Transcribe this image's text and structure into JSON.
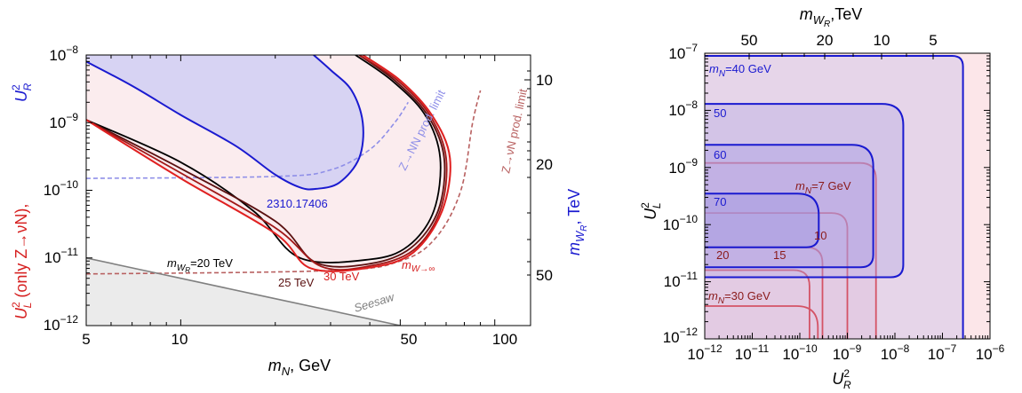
{
  "chart_data": [
    {
      "type": "line",
      "xlabel_main": "m",
      "xlabel_sub": "N",
      "xlabel_unit": ", GeV",
      "ylabel_left_red": "U",
      "ylabel_left_red_sup": "2",
      "ylabel_left_red_sub": "L",
      "ylabel_left_red_tail": " (only Z→νN),",
      "ylabel_left_blue": "U",
      "ylabel_left_blue_sup": "2",
      "ylabel_left_blue_sub": "R",
      "ylabel_right": "m",
      "ylabel_right_sub": "W",
      "ylabel_right_subsub": "R",
      "ylabel_right_unit": ", TeV",
      "xscale": "log",
      "yscale": "log",
      "xlim": [
        5,
        130
      ],
      "ylim": [
        1e-12,
        1e-08
      ],
      "xticks": [
        "5",
        "10",
        "50",
        "100"
      ],
      "yticks": [
        {
          "base": "10",
          "exp": "−8"
        },
        {
          "base": "10",
          "exp": "−9"
        },
        {
          "base": "10",
          "exp": "−10"
        },
        {
          "base": "10",
          "exp": "−11"
        },
        {
          "base": "10",
          "exp": "−12"
        }
      ],
      "right_ticks": [
        "10",
        "20",
        "50"
      ],
      "colors": {
        "red": "#d62020",
        "blue": "#2020cc",
        "black": "#000000",
        "gray": "#808080",
        "blue_fill": "#d7d3f3",
        "red_fill": "#fbecee"
      },
      "series": [
        {
          "name": "2310.17406",
          "values": [
            [
              5,
              8e-09
            ],
            [
              7,
              3.5e-09
            ],
            [
              10,
              1.3e-09
            ],
            [
              15,
              4.5e-10
            ],
            [
              20,
              1.7e-10
            ],
            [
              24,
              1.1e-10
            ],
            [
              27,
              1.05e-10
            ],
            [
              32,
              1.3e-10
            ],
            [
              37,
              3e-10
            ],
            [
              38,
              1e-09
            ],
            [
              35,
              3e-09
            ],
            [
              30,
              6e-09
            ],
            [
              26.5,
              1e-08
            ]
          ]
        },
        {
          "name": "Z→NN prod. limit",
          "values": [
            [
              5,
              1.5e-10
            ],
            [
              20,
              1.6e-10
            ],
            [
              30,
              2e-10
            ],
            [
              40,
              4e-10
            ],
            [
              48,
              1e-09
            ],
            [
              53,
              2e-09
            ]
          ]
        },
        {
          "name": "Z→νN prod. limit",
          "values": [
            [
              5,
              5.8e-12
            ],
            [
              30,
              6.5e-12
            ],
            [
              50,
              9e-12
            ],
            [
              65,
              2e-11
            ],
            [
              78,
              1e-10
            ],
            [
              85,
              1e-09
            ],
            [
              90,
              3e-09
            ]
          ]
        },
        {
          "name": "Seesaw",
          "values": [
            [
              5,
              1e-11
            ],
            [
              10,
              5e-12
            ],
            [
              20,
              2.5e-12
            ],
            [
              50,
              1e-12
            ]
          ]
        },
        {
          "name": "m_W→∞",
          "values": [
            [
              5,
              1.1e-09
            ],
            [
              10,
              1.5e-10
            ],
            [
              20,
              2.3e-11
            ],
            [
              26,
              7e-12
            ],
            [
              40,
              7.2e-12
            ],
            [
              55,
              1.2e-11
            ],
            [
              68,
              5e-11
            ],
            [
              72,
              3e-10
            ],
            [
              63,
              1.3e-09
            ],
            [
              50,
              4.2e-09
            ],
            [
              38,
              1e-08
            ]
          ]
        },
        {
          "name": "30 TeV",
          "values": [
            [
              5,
              1.1e-09
            ],
            [
              10,
              1.8e-10
            ],
            [
              20,
              2.8e-11
            ],
            [
              28,
              7.5e-12
            ],
            [
              40,
              7.6e-12
            ],
            [
              55,
              1.3e-11
            ],
            [
              67,
              5e-11
            ],
            [
              70,
              3e-10
            ],
            [
              62,
              1.3e-09
            ],
            [
              49,
              4.2e-09
            ],
            [
              37,
              1e-08
            ]
          ]
        },
        {
          "name": "25 TeV",
          "values": [
            [
              5,
              1.1e-09
            ],
            [
              10,
              2.1e-10
            ],
            [
              20,
              3.5e-11
            ],
            [
              27,
              8.5e-12
            ],
            [
              40,
              8.2e-12
            ],
            [
              54,
              1.4e-11
            ],
            [
              66,
              5e-11
            ],
            [
              69,
              3e-10
            ],
            [
              61,
              1.3e-09
            ],
            [
              48,
              4.2e-09
            ],
            [
              37,
              1e-08
            ]
          ]
        },
        {
          "name": "m_W_R=20 TeV",
          "values": [
            [
              5,
              1.1e-09
            ],
            [
              10,
              2.6e-10
            ],
            [
              17,
              5e-11
            ],
            [
              24,
              1e-11
            ],
            [
              40,
              9.5e-12
            ],
            [
              53,
              1.5e-11
            ],
            [
              64,
              5e-11
            ],
            [
              67,
              3e-10
            ],
            [
              60,
              1.3e-09
            ],
            [
              47,
              4.2e-09
            ],
            [
              36,
              1e-08
            ]
          ]
        }
      ],
      "annotations": [
        "2310.17406",
        "Z→NN prod. limit",
        "Z→νN prod. limit",
        "Seesaw",
        "m",
        "W",
        "R",
        "=20 TeV",
        "25 TeV",
        "30 TeV",
        "W→∞"
      ]
    },
    {
      "type": "line",
      "xlabel": "U",
      "xlabel_sup": "2",
      "xlabel_sub": "R",
      "ylabel": "U",
      "ylabel_sup": "2",
      "ylabel_sub": "L",
      "toplabel": "m",
      "toplabel_sub": "W",
      "toplabel_subsub": "R",
      "toplabel_unit": ",TeV",
      "xscale": "log",
      "yscale": "log",
      "xlim": [
        1e-12,
        1e-06
      ],
      "ylim": [
        1e-12,
        1e-07
      ],
      "xticks": [
        {
          "base": "10",
          "exp": "−12"
        },
        {
          "base": "10",
          "exp": "−11"
        },
        {
          "base": "10",
          "exp": "−10"
        },
        {
          "base": "10",
          "exp": "−9"
        },
        {
          "base": "10",
          "exp": "−8"
        },
        {
          "base": "10",
          "exp": "−7"
        },
        {
          "base": "10",
          "exp": "−6"
        }
      ],
      "yticks": [
        {
          "base": "10",
          "exp": "−7"
        },
        {
          "base": "10",
          "exp": "−8"
        },
        {
          "base": "10",
          "exp": "−9"
        },
        {
          "base": "10",
          "exp": "−10"
        },
        {
          "base": "10",
          "exp": "−11"
        },
        {
          "base": "10",
          "exp": "−12"
        }
      ],
      "top_ticks": [
        "50",
        "20",
        "10",
        "5"
      ],
      "series_blue": [
        {
          "name": "40 GeV",
          "x_edge": 2.7e-07,
          "y_edge": 1e-07
        },
        {
          "name": "50",
          "x_edge": 1.5e-08,
          "y_edge": 1.3e-08
        },
        {
          "name": "60",
          "x_edge": 3.5e-09,
          "y_edge": 2.5e-09
        },
        {
          "name": "70",
          "x_edge": 2.5e-10,
          "y_edge": 3.5e-10
        }
      ],
      "series_red": [
        {
          "name": "7 GeV",
          "x_edge": 4e-09,
          "y_edge": 1.2e-09
        },
        {
          "name": "10",
          "x_edge": 1e-09,
          "y_edge": 1.6e-10
        },
        {
          "name": "15",
          "x_edge": 3e-10,
          "y_edge": 4e-11
        },
        {
          "name": "20",
          "x_edge": 1.6e-10,
          "y_edge": 1.6e-11
        },
        {
          "name": "30 GeV",
          "x_edge": 1.6e-10,
          "y_edge": 1.6e-11
        }
      ],
      "annotations": [
        "m",
        "N",
        "=40 GeV",
        "50",
        "60",
        "70",
        "m",
        "N",
        "=7 GeV",
        "10",
        "15",
        "20",
        "m",
        "N",
        "=30 GeV"
      ]
    }
  ]
}
